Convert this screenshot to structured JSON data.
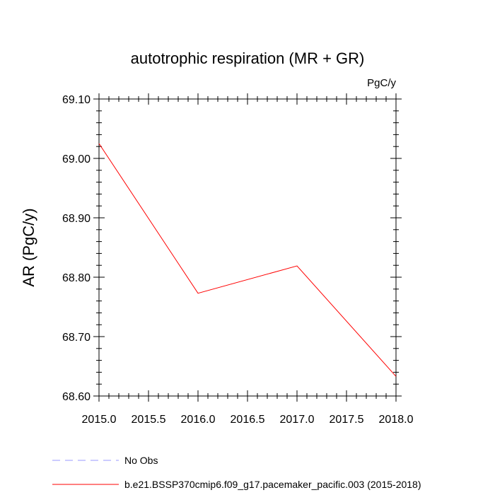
{
  "chart_data": {
    "type": "line",
    "title": "autotrophic respiration (MR + GR)",
    "units_label": "PgC/y",
    "ylabel": "AR  (PgC/y)",
    "xlabel": "",
    "xlim": [
      2015.0,
      2018.0
    ],
    "ylim": [
      68.6,
      69.1
    ],
    "x_ticks": [
      "2015.0",
      "2015.5",
      "2016.0",
      "2016.5",
      "2017.0",
      "2017.5",
      "2018.0"
    ],
    "y_ticks": [
      "68.60",
      "68.70",
      "68.80",
      "68.90",
      "69.00",
      "69.10"
    ],
    "series": [
      {
        "name": "b.e21.BSSP370cmip6.f09_g17.pacemaker_pacific.003 (2015-2018)",
        "color": "#ff0000",
        "style": "solid",
        "x": [
          2015,
          2016,
          2017,
          2018
        ],
        "values": [
          69.025,
          68.773,
          68.819,
          68.633
        ]
      }
    ],
    "legend": [
      {
        "label": "No Obs",
        "color": "#9999ff",
        "style": "dashed"
      },
      {
        "label": "b.e21.BSSP370cmip6.f09_g17.pacemaker_pacific.003 (2015-2018)",
        "color": "#ff0000",
        "style": "solid"
      }
    ],
    "legend_position": "bottom-left"
  }
}
